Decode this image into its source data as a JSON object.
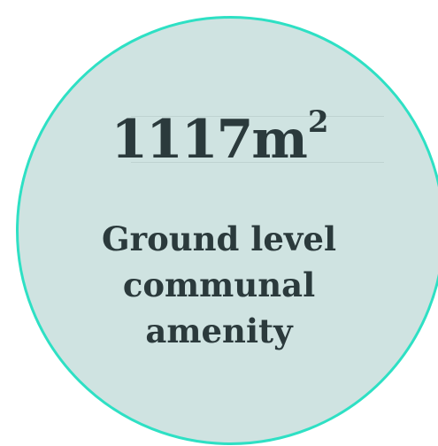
{
  "stat": {
    "number": "1117",
    "unit": "m",
    "unit_superscript": "2",
    "label_lines": [
      "Ground level",
      "communal",
      "amenity"
    ]
  },
  "colors": {
    "circle_fill": "#cfe3e1",
    "circle_border": "#2ee0c4",
    "text": "#2b3a3c"
  }
}
